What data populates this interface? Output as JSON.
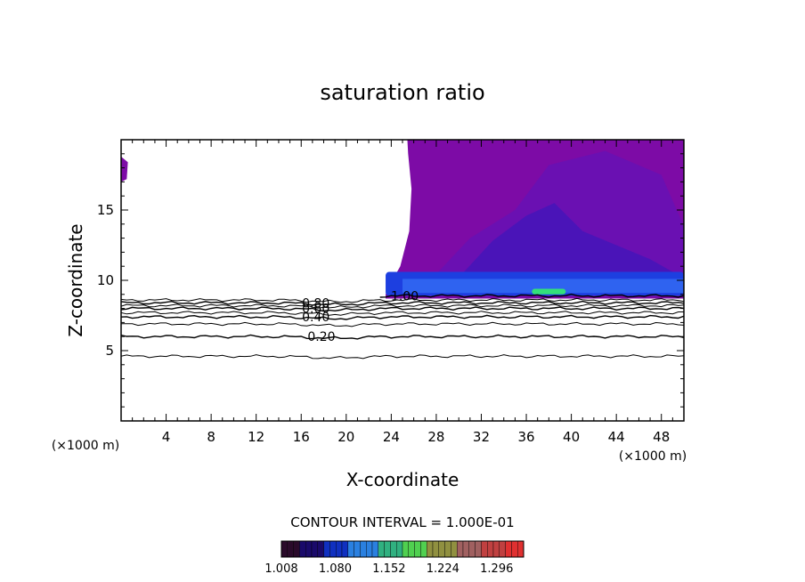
{
  "chart_data": {
    "type": "contour",
    "title": "saturation ratio",
    "xlabel": "X-coordinate",
    "ylabel": "Z-coordinate",
    "x_unit_left": "(×1000 m)",
    "x_unit_right": "(×1000 m)",
    "xlim": [
      0,
      50
    ],
    "ylim": [
      0,
      20
    ],
    "x_ticks": [
      4,
      8,
      12,
      16,
      20,
      24,
      28,
      32,
      36,
      40,
      44,
      48
    ],
    "y_ticks": [
      5,
      10,
      15
    ],
    "contour_interval_label": "CONTOUR INTERVAL = 1.000E-01",
    "contour_lines": [
      {
        "level": 0.1,
        "z": 4.6
      },
      {
        "level": 0.2,
        "z": 6.0,
        "label": "0.20"
      },
      {
        "level": 0.3,
        "z": 6.9
      },
      {
        "level": 0.4,
        "z": 7.4,
        "label": "0.40"
      },
      {
        "level": 0.5,
        "z": 7.7
      },
      {
        "level": 0.6,
        "z": 8.0,
        "label": "0.60"
      },
      {
        "level": 0.7,
        "z": 8.2
      },
      {
        "level": 0.8,
        "z": 8.4,
        "label": "0.80"
      },
      {
        "level": 0.9,
        "z": 8.6
      },
      {
        "level": 1.0,
        "z": 8.9,
        "label": "1.00"
      }
    ],
    "supersaturated_region": {
      "x_range": [
        23.5,
        50
      ],
      "z_range": [
        8.9,
        20
      ],
      "core_z_range": [
        8.9,
        10.6
      ],
      "max_region_x": [
        36.5,
        39.5
      ],
      "max_region_z": 9.1
    },
    "colorbar": {
      "ticks": [
        "1.008",
        "1.080",
        "1.152",
        "1.224",
        "1.296"
      ],
      "min": 1.008,
      "max": 1.332
    }
  }
}
